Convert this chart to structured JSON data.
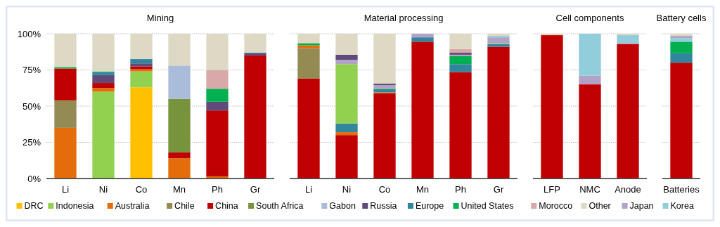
{
  "chart_data": [
    {
      "type": "bar",
      "title": "Mining",
      "stacked": true,
      "categories": [
        "Li",
        "Ni",
        "Co",
        "Mn",
        "Ph",
        "Gr"
      ],
      "ylim": [
        0,
        100
      ],
      "yticks": [
        {
          "value": 0,
          "label": "0%"
        },
        {
          "value": 25,
          "label": "25%"
        },
        {
          "value": 50,
          "label": "50%"
        },
        {
          "value": 75,
          "label": "75%"
        },
        {
          "value": 100,
          "label": "100%"
        }
      ],
      "grid": "y",
      "legend": "bottom",
      "series": [
        {
          "name": "DRC",
          "color": "#ffc000",
          "values": [
            0,
            0,
            63,
            0,
            0,
            0
          ]
        },
        {
          "name": "Indonesia",
          "color": "#92d050",
          "values": [
            0,
            60,
            11,
            0,
            0,
            0
          ]
        },
        {
          "name": "Australia",
          "color": "#e46c0a",
          "values": [
            35,
            2.5,
            1.5,
            14,
            1.5,
            0
          ]
        },
        {
          "name": "Chile",
          "color": "#948a54",
          "values": [
            19,
            0,
            0,
            0,
            0,
            0
          ]
        },
        {
          "name": "China",
          "color": "#c00000",
          "values": [
            22,
            3.5,
            2,
            4,
            45.5,
            85
          ]
        },
        {
          "name": "South Africa",
          "color": "#77933c",
          "values": [
            0,
            0,
            0,
            37,
            0,
            0
          ]
        },
        {
          "name": "Gabon",
          "color": "#a9bcd9",
          "values": [
            0,
            0,
            0,
            23,
            0,
            0
          ]
        },
        {
          "name": "Russia",
          "color": "#604a7b",
          "values": [
            0,
            5.5,
            2,
            0,
            6,
            1.5
          ]
        },
        {
          "name": "Europe",
          "color": "#31859c",
          "values": [
            0,
            2,
            3,
            0,
            0,
            0.5
          ]
        },
        {
          "name": "United States",
          "color": "#00b050",
          "values": [
            1,
            0.5,
            0,
            0,
            9,
            0
          ]
        },
        {
          "name": "Morocco",
          "color": "#d9a8a8",
          "values": [
            0,
            0,
            0,
            0,
            13,
            0
          ]
        },
        {
          "name": "Other",
          "color": "#ddd9c4",
          "values": [
            23,
            26,
            17.5,
            22,
            25,
            13
          ]
        }
      ]
    },
    {
      "type": "bar",
      "title": "Material processing",
      "stacked": true,
      "categories": [
        "Li",
        "Ni",
        "Co",
        "Mn",
        "Ph",
        "Gr"
      ],
      "ylim": [
        0,
        100
      ],
      "yticks": [
        {
          "value": 0,
          "label": null
        },
        {
          "value": 25,
          "label": null
        },
        {
          "value": 50,
          "label": null
        },
        {
          "value": 75,
          "label": null
        },
        {
          "value": 100,
          "label": null
        }
      ],
      "grid": "y",
      "tick_labels": "x",
      "legend": "bottom",
      "series": [
        {
          "name": "China",
          "color": "#c00000",
          "values": [
            69,
            30,
            59,
            94.5,
            73.5,
            91
          ]
        },
        {
          "name": "Chile",
          "color": "#948a54",
          "values": [
            21,
            0,
            0,
            0,
            0,
            0
          ]
        },
        {
          "name": "Australia",
          "color": "#e46c0a",
          "values": [
            2,
            2,
            0.5,
            0,
            0,
            0
          ]
        },
        {
          "name": "Europe",
          "color": "#31859c",
          "values": [
            0,
            6,
            2.5,
            3,
            5.5,
            2
          ]
        },
        {
          "name": "United States",
          "color": "#00b050",
          "values": [
            1.5,
            0,
            0,
            0,
            5.5,
            0
          ]
        },
        {
          "name": "Indonesia",
          "color": "#92d050",
          "values": [
            0,
            41,
            0.5,
            0,
            0,
            0.5
          ]
        },
        {
          "name": "Japan",
          "color": "#b3a2c7",
          "values": [
            0,
            3,
            2,
            2.5,
            1,
            4
          ]
        },
        {
          "name": "Russia",
          "color": "#604a7b",
          "values": [
            0,
            3.5,
            1,
            0,
            1.5,
            0
          ]
        },
        {
          "name": "Morocco",
          "color": "#d9a8a8",
          "values": [
            0,
            0,
            0,
            0,
            2.5,
            0
          ]
        },
        {
          "name": "Korea",
          "color": "#92cddc",
          "values": [
            0,
            0,
            0,
            0,
            0,
            1
          ]
        },
        {
          "name": "Other",
          "color": "#ddd9c4",
          "values": [
            6.5,
            14.5,
            34.5,
            null,
            10.5,
            1.5
          ]
        }
      ]
    },
    {
      "type": "bar",
      "title": "Cell components",
      "stacked": true,
      "categories": [
        "LFP",
        "NMC",
        "Anode"
      ],
      "ylim": [
        0,
        100
      ],
      "yticks": [
        {
          "value": 0,
          "label": null
        },
        {
          "value": 25,
          "label": null
        },
        {
          "value": 50,
          "label": null
        },
        {
          "value": 75,
          "label": null
        },
        {
          "value": 100,
          "label": null
        }
      ],
      "grid": "y",
      "tick_labels": "x",
      "legend": "bottom",
      "series": [
        {
          "name": "China",
          "color": "#c00000",
          "values": [
            99,
            65,
            93
          ]
        },
        {
          "name": "Japan",
          "color": "#b3a2c7",
          "values": [
            0,
            6,
            0.5
          ]
        },
        {
          "name": "Korea",
          "color": "#92cddc",
          "values": [
            0,
            29,
            5.5
          ]
        },
        {
          "name": "Other",
          "color": "#ddd9c4",
          "values": [
            1,
            0,
            1
          ]
        }
      ]
    },
    {
      "type": "bar",
      "title": "Battery cells",
      "stacked": true,
      "categories": [
        "Batteries"
      ],
      "ylim": [
        0,
        100
      ],
      "yticks": [
        {
          "value": 0,
          "label": null
        },
        {
          "value": 25,
          "label": null
        },
        {
          "value": 50,
          "label": null
        },
        {
          "value": 75,
          "label": null
        },
        {
          "value": 100,
          "label": null
        }
      ],
      "grid": "y",
      "tick_labels": "x",
      "legend": "bottom",
      "series": [
        {
          "name": "China",
          "color": "#c00000",
          "values": [
            80
          ]
        },
        {
          "name": "Europe",
          "color": "#31859c",
          "values": [
            6.5
          ]
        },
        {
          "name": "United States",
          "color": "#00b050",
          "values": [
            8
          ]
        },
        {
          "name": "Korea",
          "color": "#92cddc",
          "values": [
            2.5
          ]
        },
        {
          "name": "Japan",
          "color": "#b3a2c7",
          "values": [
            1.5
          ]
        },
        {
          "name": "Other",
          "color": "#ddd9c4",
          "values": [
            1.5
          ]
        }
      ]
    }
  ]
}
